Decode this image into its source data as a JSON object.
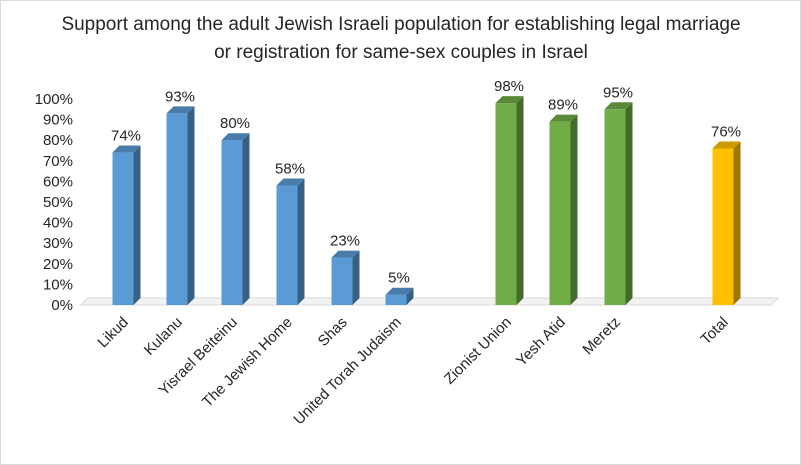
{
  "chart_data": {
    "type": "bar",
    "title": "Support among the adult Jewish Israeli population for establishing legal marriage or registration for same-sex couples in Israel",
    "xlabel": "",
    "ylabel": "",
    "ylim": [
      0,
      100
    ],
    "yticks": [
      "0%",
      "10%",
      "20%",
      "30%",
      "40%",
      "50%",
      "60%",
      "70%",
      "80%",
      "90%",
      "100%"
    ],
    "grid": false,
    "legend": "none",
    "bars": [
      {
        "category": "Likud",
        "value": 74,
        "label": "74%",
        "color": "#5b9bd5"
      },
      {
        "category": "Kulanu",
        "value": 93,
        "label": "93%",
        "color": "#5b9bd5"
      },
      {
        "category": "Yisrael Beiteinu",
        "value": 80,
        "label": "80%",
        "color": "#5b9bd5"
      },
      {
        "category": "The Jewish Home",
        "value": 58,
        "label": "58%",
        "color": "#5b9bd5"
      },
      {
        "category": "Shas",
        "value": 23,
        "label": "23%",
        "color": "#5b9bd5"
      },
      {
        "category": "United Torah Judaism",
        "value": 5,
        "label": "5%",
        "color": "#5b9bd5"
      },
      {
        "category": "Zionist Union",
        "value": 98,
        "label": "98%",
        "color": "#70ad47"
      },
      {
        "category": "Yesh Atid",
        "value": 89,
        "label": "89%",
        "color": "#70ad47"
      },
      {
        "category": "Meretz",
        "value": 95,
        "label": "95%",
        "color": "#70ad47"
      },
      {
        "category": "Total",
        "value": 76,
        "label": "76%",
        "color": "#ffc000"
      }
    ]
  }
}
